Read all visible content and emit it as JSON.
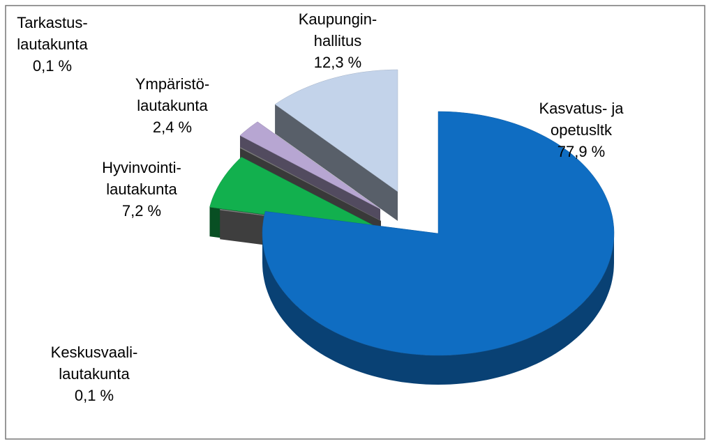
{
  "chart_data": {
    "type": "pie3d",
    "categories": [
      [
        "Kasvatus- ja",
        "opetusltk"
      ],
      [
        "Keskusvaali-",
        "lautakunta"
      ],
      [
        "Hyvinvointi-",
        "lautakunta"
      ],
      [
        "Tarkastus-",
        "lautakunta"
      ],
      [
        "Ympäristö-",
        "lautakunta"
      ],
      [
        "Kaupungin-",
        "hallitus"
      ]
    ],
    "values": [
      77.9,
      0.1,
      7.2,
      0.1,
      2.4,
      12.3
    ],
    "value_labels": [
      "77,9 %",
      "0,1 %",
      "7,2 %",
      "0,1 %",
      "2,4 %",
      "12,3 %"
    ],
    "colors": [
      "#0f6dc2",
      "#8a8a8a",
      "#12b04e",
      "#7f7f7f",
      "#b7a6d2",
      "#c3d3ea"
    ]
  }
}
